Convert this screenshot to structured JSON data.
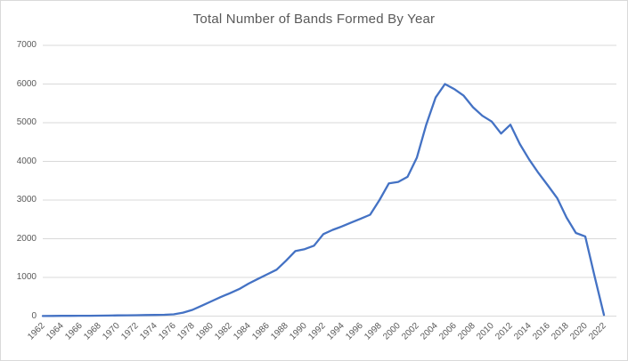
{
  "window": {
    "background": "#ffffff",
    "border_color": "#d9d9d9"
  },
  "chart_data": {
    "type": "line",
    "title": "Total Number of Bands Formed By Year",
    "xlabel": "",
    "ylabel": "",
    "grid": true,
    "legend": "none",
    "text_color": "#595959",
    "gridline_color": "#d9d9d9",
    "line_color": "#4472c4",
    "xlim": [
      1962,
      2022
    ],
    "ylim": [
      0,
      7000
    ],
    "ytick_values": [
      0,
      1000,
      2000,
      3000,
      4000,
      5000,
      6000,
      7000
    ],
    "xtick_labels": [
      "1962",
      "1964",
      "1966",
      "1968",
      "1970",
      "1972",
      "1974",
      "1976",
      "1978",
      "1980",
      "1982",
      "1984",
      "1986",
      "1988",
      "1990",
      "1992",
      "1994",
      "1996",
      "1998",
      "2000",
      "2002",
      "2004",
      "2006",
      "2008",
      "2010",
      "2012",
      "2014",
      "2016",
      "2018",
      "2020",
      "2022"
    ],
    "x": [
      1962,
      1963,
      1964,
      1965,
      1966,
      1967,
      1968,
      1969,
      1970,
      1971,
      1972,
      1973,
      1974,
      1975,
      1976,
      1977,
      1978,
      1979,
      1980,
      1981,
      1982,
      1983,
      1984,
      1985,
      1986,
      1987,
      1988,
      1989,
      1990,
      1991,
      1992,
      1993,
      1994,
      1995,
      1996,
      1997,
      1998,
      1999,
      2000,
      2001,
      2002,
      2003,
      2004,
      2005,
      2006,
      2007,
      2008,
      2009,
      2010,
      2011,
      2012,
      2013,
      2014,
      2015,
      2016,
      2017,
      2018,
      2019,
      2020,
      2021,
      2022
    ],
    "series": [
      {
        "name": "Total Number of Bands Formed",
        "color": "#4472c4",
        "values": [
          3,
          4,
          6,
          8,
          9,
          10,
          12,
          14,
          18,
          20,
          24,
          27,
          30,
          35,
          45,
          90,
          160,
          270,
          380,
          490,
          590,
          700,
          840,
          960,
          1080,
          1200,
          1430,
          1680,
          1730,
          1820,
          2120,
          2230,
          2320,
          2420,
          2520,
          2620,
          3000,
          3430,
          3470,
          3600,
          4100,
          4950,
          5650,
          6000,
          5870,
          5700,
          5400,
          5180,
          5030,
          4720,
          4950,
          4450,
          4050,
          3700,
          3380,
          3050,
          2550,
          2150,
          2060,
          1030,
          30
        ]
      }
    ]
  }
}
